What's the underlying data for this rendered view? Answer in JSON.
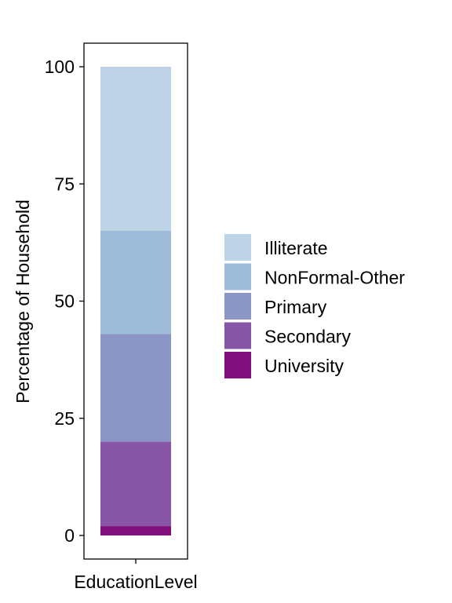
{
  "chart_data": {
    "type": "bar",
    "stacked": true,
    "categories": [
      "EducationLevel"
    ],
    "series": [
      {
        "name": "University",
        "values": [
          2
        ],
        "color": "#810F7C"
      },
      {
        "name": "Secondary",
        "values": [
          18
        ],
        "color": "#8856A7"
      },
      {
        "name": "Primary",
        "values": [
          23
        ],
        "color": "#8C96C6"
      },
      {
        "name": "NonFormal-Other",
        "values": [
          22
        ],
        "color": "#9EBCDA"
      },
      {
        "name": "Illiterate",
        "values": [
          35
        ],
        "color": "#BFD3E6"
      }
    ],
    "legend_order": [
      "Illiterate",
      "NonFormal-Other",
      "Primary",
      "Secondary",
      "University"
    ],
    "yticks": [
      "0",
      "25",
      "50",
      "75",
      "100"
    ],
    "ylabel": "Percentage of Household",
    "xlabel": "",
    "ylim": [
      -3,
      105
    ],
    "grid": false,
    "legend_position": "right"
  }
}
